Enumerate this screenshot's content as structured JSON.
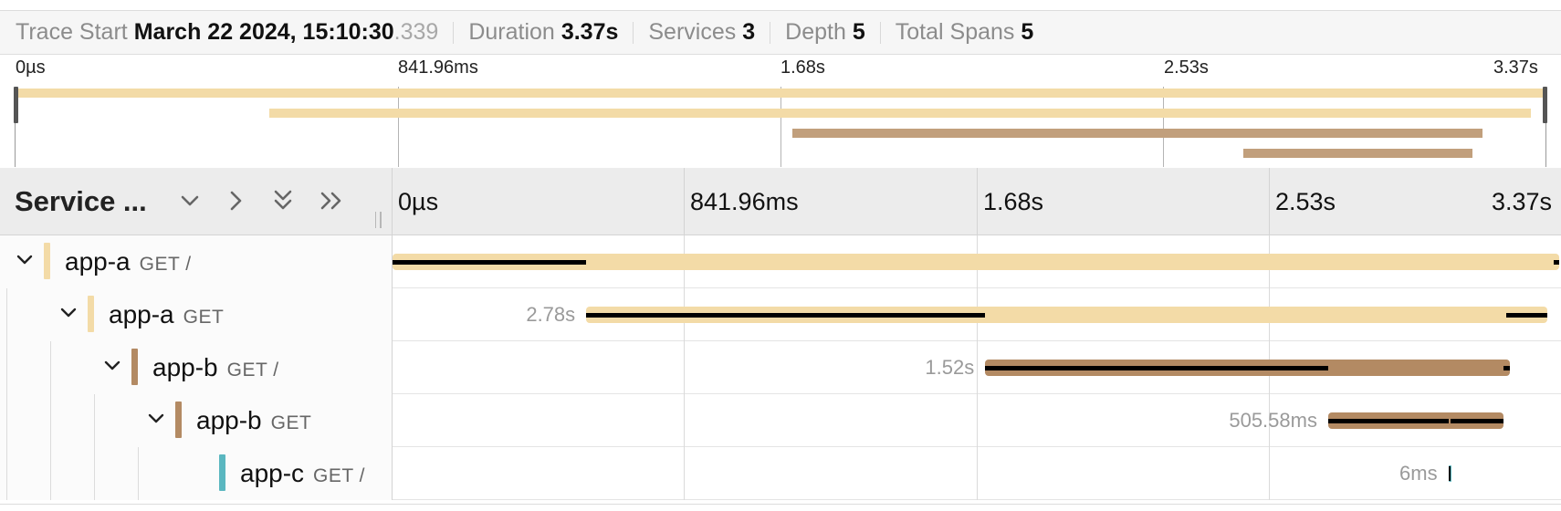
{
  "summary": {
    "trace_start_label": "Trace Start",
    "trace_start_value": "March 22 2024, 15:10:30",
    "trace_start_ms": ".339",
    "duration_label": "Duration",
    "duration_value": "3.37s",
    "services_label": "Services",
    "services_value": "3",
    "depth_label": "Depth",
    "depth_value": "5",
    "total_spans_label": "Total Spans",
    "total_spans_value": "5"
  },
  "timeline_ticks": [
    "0µs",
    "841.96ms",
    "1.68s",
    "2.53s",
    "3.37s"
  ],
  "header": {
    "title": "Service ...",
    "buttons": [
      "collapse-one-icon",
      "expand-one-icon",
      "collapse-all-icon",
      "expand-all-icon"
    ]
  },
  "colors": {
    "app_a": "#f3dba7",
    "app_b": "#b38a63",
    "app_b_minimap": "#c19f7c",
    "app_c": "#5ab7c0",
    "critical_path": "#000000"
  },
  "spans": [
    {
      "service": "app-a",
      "operation": "GET /",
      "depth": 0,
      "color": "#f3dba7",
      "duration_label": "",
      "start": 0.0,
      "end": 1.0,
      "critical": [
        [
          0.0,
          0.166
        ],
        [
          0.995,
          1.0
        ]
      ],
      "expanded": true
    },
    {
      "service": "app-a",
      "operation": "GET",
      "depth": 1,
      "color": "#f3dba7",
      "duration_label": "2.78s",
      "start": 0.166,
      "end": 0.99,
      "critical": [
        [
          0.166,
          0.508
        ],
        [
          0.955,
          0.99
        ]
      ],
      "expanded": true
    },
    {
      "service": "app-b",
      "operation": "GET /",
      "depth": 2,
      "color": "#b38a63",
      "duration_label": "1.52s",
      "start": 0.508,
      "end": 0.958,
      "critical": [
        [
          0.508,
          0.802
        ],
        [
          0.952,
          0.958
        ]
      ],
      "expanded": true
    },
    {
      "service": "app-b",
      "operation": "GET",
      "depth": 3,
      "color": "#b38a63",
      "duration_label": "505.58ms",
      "start": 0.802,
      "end": 0.952,
      "critical": [
        [
          0.802,
          0.905
        ],
        [
          0.907,
          0.952
        ]
      ],
      "expanded": true
    },
    {
      "service": "app-c",
      "operation": "GET /",
      "depth": 4,
      "color": "#5ab7c0",
      "duration_label": "6ms",
      "start": 0.905,
      "end": 0.908,
      "critical": [
        [
          0.905,
          0.907
        ]
      ],
      "expanded": false
    }
  ]
}
